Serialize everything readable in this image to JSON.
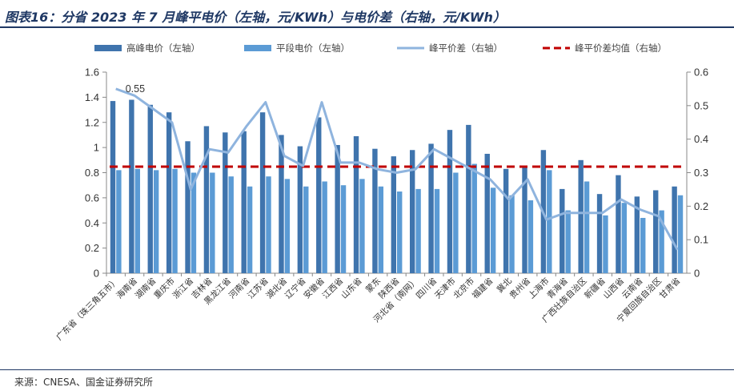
{
  "title": "图表16：分省 2023 年 7 月峰平电价（左轴，元/KWh）与电价差（右轴，元/KWh）",
  "source": "来源：CNESA、国金证券研究所",
  "colors": {
    "peak": "#3f74ad",
    "flat": "#5b9bd5",
    "diff": "#8fb4de",
    "avg": "#c00000",
    "title": "#1f3864"
  },
  "chart_data": {
    "type": "bar",
    "categories": [
      "广东省（珠三角五市）",
      "海南省",
      "湖南省",
      "重庆市",
      "浙江省",
      "吉林省",
      "黑龙江省",
      "河南省",
      "江苏省",
      "湖北省",
      "辽宁省",
      "安徽省",
      "江西省",
      "山东省",
      "蒙东",
      "陕西省",
      "河北省（南网）",
      "四川省",
      "天津市",
      "北京市",
      "福建省",
      "冀北",
      "贵州省",
      "上海市",
      "青海省",
      "广西壮族自治区",
      "新疆省",
      "山西省",
      "云南省",
      "宁夏回族自治区",
      "甘肃省"
    ],
    "series": [
      {
        "name": "高峰电价（左轴）",
        "type": "bar",
        "axis": "left",
        "values": [
          1.37,
          1.38,
          1.34,
          1.28,
          1.05,
          1.17,
          1.12,
          1.13,
          1.28,
          1.1,
          1.01,
          1.24,
          1.02,
          1.09,
          0.99,
          0.93,
          0.98,
          1.03,
          1.14,
          1.18,
          0.95,
          0.83,
          0.85,
          0.98,
          0.67,
          0.9,
          0.63,
          0.78,
          0.61,
          0.66,
          0.69
        ]
      },
      {
        "name": "平段电价（左轴）",
        "type": "bar",
        "axis": "left",
        "values": [
          0.82,
          0.83,
          0.82,
          0.83,
          0.8,
          0.8,
          0.77,
          0.69,
          0.77,
          0.75,
          0.69,
          0.73,
          0.7,
          0.75,
          0.69,
          0.65,
          0.67,
          0.67,
          0.8,
          0.87,
          0.68,
          0.62,
          0.58,
          0.82,
          0.5,
          0.73,
          0.46,
          0.56,
          0.44,
          0.5,
          0.62
        ]
      },
      {
        "name": "峰平价差（右轴）",
        "type": "line",
        "axis": "right",
        "values": [
          0.55,
          0.53,
          0.49,
          0.45,
          0.25,
          0.37,
          0.36,
          0.44,
          0.51,
          0.35,
          0.32,
          0.51,
          0.33,
          0.33,
          0.31,
          0.3,
          0.31,
          0.37,
          0.34,
          0.31,
          0.28,
          0.22,
          0.28,
          0.16,
          0.18,
          0.18,
          0.18,
          0.22,
          0.19,
          0.17,
          0.07
        ]
      },
      {
        "name": "峰平价差均值（右轴）",
        "type": "hline",
        "axis": "right",
        "value": 0.318
      }
    ],
    "annotations": [
      {
        "series": 2,
        "index": 0,
        "text": "0.55"
      }
    ],
    "y_left": {
      "min": 0,
      "max": 1.6,
      "step": 0.2,
      "ticks": [
        "0",
        "0.2",
        "0.4",
        "0.6",
        "0.8",
        "1",
        "1.2",
        "1.4",
        "1.6"
      ]
    },
    "y_right": {
      "min": 0,
      "max": 0.6,
      "step": 0.1,
      "ticks": [
        "0",
        "0.1",
        "0.2",
        "0.3",
        "0.4",
        "0.5",
        "0.6"
      ]
    },
    "legend_position": "top",
    "grid": false
  }
}
